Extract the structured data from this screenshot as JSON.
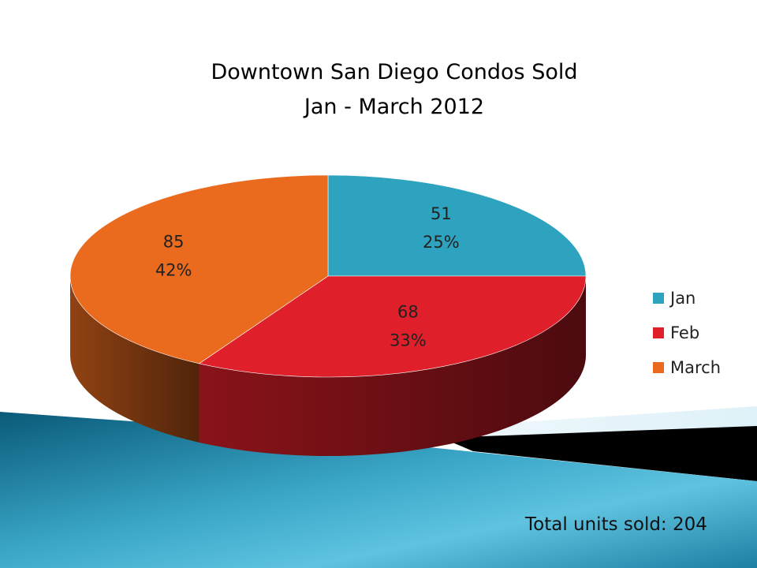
{
  "chart_data": {
    "type": "pie",
    "title": "Downtown San Diego Condos Sold",
    "subtitle": "Jan - March 2012",
    "categories": [
      "Jan",
      "Feb",
      "March"
    ],
    "values": [
      51,
      68,
      85
    ],
    "percent_labels": [
      "25%",
      "33%",
      "42%"
    ],
    "value_labels": [
      "51",
      "68",
      "85"
    ],
    "colors": [
      "#2ea3bf",
      "#df1f2a",
      "#ea6a1e"
    ],
    "legend": "right",
    "style": "3d"
  },
  "footer": {
    "total_text": "Total units sold: 204"
  }
}
